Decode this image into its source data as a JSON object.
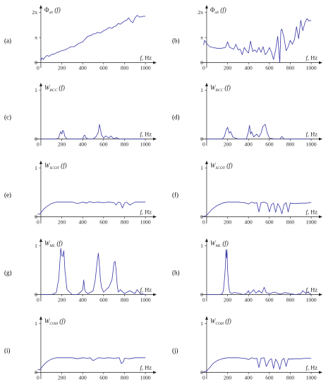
{
  "figure": {
    "x_axis_label": "f, Hz",
    "x_ticks": [
      0,
      200,
      400,
      600,
      800,
      1000
    ]
  },
  "chart_data": [
    {
      "panel": "(a)",
      "type": "line",
      "ylabel_symbol": "Φ",
      "ylabel_sub": "ab",
      "ylabel_arg": "(f)",
      "xlim": [
        -40,
        1040
      ],
      "ylim": [
        -0.3,
        6.6
      ],
      "yticks": [
        {
          "v": 0,
          "t": "0"
        },
        {
          "v": 3.1416,
          "t": "π"
        },
        {
          "v": 6.2832,
          "t": "2π"
        }
      ],
      "x": [
        0,
        10,
        25,
        40,
        60,
        80,
        100,
        130,
        160,
        200,
        230,
        260,
        290,
        320,
        350,
        380,
        400,
        420,
        450,
        480,
        500,
        520,
        540,
        560,
        580,
        600,
        620,
        650,
        680,
        700,
        720,
        740,
        760,
        780,
        800,
        820,
        840,
        860,
        880,
        900,
        920,
        950,
        980,
        1000
      ],
      "values": [
        0.2,
        0.6,
        0.4,
        0.7,
        0.9,
        0.8,
        1.0,
        1.1,
        1.3,
        1.5,
        1.6,
        1.8,
        2.0,
        2.0,
        2.3,
        2.5,
        2.6,
        2.9,
        3.3,
        3.4,
        3.6,
        3.6,
        3.8,
        3.7,
        3.8,
        4.0,
        4.1,
        4.4,
        4.3,
        4.5,
        4.6,
        4.9,
        4.8,
        5.0,
        5.2,
        5.3,
        5.6,
        5.2,
        5.0,
        5.6,
        5.9,
        5.7,
        5.8,
        5.8
      ]
    },
    {
      "panel": "(b)",
      "type": "line",
      "ylabel_symbol": "Φ",
      "ylabel_sub": "ab",
      "ylabel_arg": "(f)",
      "xlim": [
        -40,
        1040
      ],
      "ylim": [
        -0.3,
        6.6
      ],
      "yticks": [
        {
          "v": 0,
          "t": "0"
        },
        {
          "v": 3.1416,
          "t": "π"
        },
        {
          "v": 6.2832,
          "t": "2π"
        }
      ],
      "x": [
        -30,
        -20,
        0,
        30,
        60,
        100,
        140,
        180,
        200,
        220,
        260,
        280,
        300,
        320,
        340,
        360,
        380,
        400,
        420,
        440,
        460,
        480,
        500,
        520,
        540,
        560,
        580,
        600,
        620,
        640,
        660,
        680,
        700,
        710,
        720,
        740,
        760,
        780,
        800,
        820,
        840,
        860,
        880,
        900,
        920,
        940,
        960,
        980,
        1000
      ],
      "values": [
        2.2,
        2.8,
        2.4,
        2.0,
        1.9,
        1.8,
        1.8,
        1.9,
        2.6,
        1.9,
        1.7,
        2.3,
        1.6,
        1.7,
        1.0,
        1.9,
        1.5,
        1.2,
        2.7,
        1.4,
        1.6,
        1.3,
        1.9,
        1.3,
        2.0,
        1.0,
        1.3,
        1.9,
        1.3,
        0.4,
        1.6,
        3.3,
        0.0,
        4.0,
        4.2,
        3.1,
        1.5,
        2.0,
        2.8,
        2.3,
        2.9,
        4.5,
        3.0,
        5.3,
        4.0,
        5.0,
        5.5,
        5.2,
        5.3
      ]
    },
    {
      "panel": "(c)",
      "type": "line",
      "ylabel_symbol": "W",
      "ylabel_sub": "BCC",
      "ylabel_arg": "(f)",
      "xlim": [
        -40,
        1040
      ],
      "ylim": [
        -0.08,
        1.05
      ],
      "yticks": [
        {
          "v": 0,
          "t": "0"
        },
        {
          "v": 1,
          "t": "1"
        }
      ],
      "x": [
        0,
        100,
        150,
        170,
        180,
        190,
        200,
        210,
        220,
        230,
        250,
        300,
        400,
        410,
        420,
        430,
        450,
        500,
        530,
        550,
        560,
        570,
        580,
        600,
        620,
        650,
        670,
        700,
        720,
        750,
        1000
      ],
      "values": [
        0,
        0,
        0,
        0.02,
        0.1,
        0.15,
        0.1,
        0.18,
        0.14,
        0.05,
        0,
        0,
        0,
        0.06,
        0.08,
        0.03,
        0,
        0,
        0.05,
        0.14,
        0.3,
        0.2,
        0.08,
        0.02,
        0.06,
        0.02,
        0.06,
        0,
        0.03,
        0,
        0
      ]
    },
    {
      "panel": "(d)",
      "type": "line",
      "ylabel_symbol": "W",
      "ylabel_sub": "BCC",
      "ylabel_arg": "(f)",
      "xlim": [
        -40,
        1040
      ],
      "ylim": [
        -0.08,
        1.05
      ],
      "yticks": [
        {
          "v": 0,
          "t": "0"
        },
        {
          "v": 1,
          "t": "1"
        }
      ],
      "x": [
        0,
        100,
        150,
        170,
        185,
        200,
        215,
        230,
        250,
        300,
        350,
        380,
        400,
        410,
        420,
        430,
        450,
        480,
        500,
        520,
        540,
        560,
        580,
        600,
        650,
        700,
        720,
        740,
        760,
        800,
        1000
      ],
      "values": [
        0,
        0,
        0,
        0.05,
        0.17,
        0.24,
        0.12,
        0.15,
        0.04,
        0,
        0,
        0,
        0.15,
        0.28,
        0.1,
        0.15,
        0.04,
        0.1,
        0.04,
        0.12,
        0.26,
        0.3,
        0.12,
        0.02,
        0,
        0,
        0.05,
        0,
        0,
        0,
        0
      ]
    },
    {
      "panel": "(e)",
      "type": "line",
      "ylabel_symbol": "W",
      "ylabel_sub": "SCOT",
      "ylabel_arg": "(f)",
      "xlim": [
        -40,
        1040
      ],
      "ylim": [
        -0.08,
        1.05
      ],
      "yticks": [
        {
          "v": 0,
          "t": "0"
        },
        {
          "v": 1,
          "t": "1"
        }
      ],
      "x": [
        -30,
        -10,
        0,
        20,
        50,
        100,
        150,
        200,
        300,
        350,
        400,
        440,
        460,
        500,
        550,
        600,
        650,
        700,
        720,
        740,
        760,
        780,
        800,
        820,
        850,
        900,
        950,
        1000
      ],
      "values": [
        0.06,
        0.05,
        0.08,
        0.14,
        0.2,
        0.27,
        0.3,
        0.3,
        0.3,
        0.27,
        0.3,
        0.28,
        0.31,
        0.29,
        0.3,
        0.29,
        0.3,
        0.29,
        0.24,
        0.3,
        0.29,
        0.18,
        0.28,
        0.3,
        0.24,
        0.3,
        0.3,
        0.3
      ]
    },
    {
      "panel": "(f)",
      "type": "line",
      "ylabel_symbol": "W",
      "ylabel_sub": "SCOT",
      "ylabel_arg": "(f)",
      "xlim": [
        -40,
        1040
      ],
      "ylim": [
        -0.08,
        1.05
      ],
      "yticks": [
        {
          "v": 0,
          "t": "0"
        },
        {
          "v": 1,
          "t": "1"
        }
      ],
      "x": [
        -30,
        -10,
        0,
        20,
        50,
        100,
        150,
        200,
        300,
        350,
        380,
        400,
        430,
        460,
        480,
        500,
        520,
        550,
        580,
        600,
        620,
        640,
        660,
        680,
        700,
        720,
        740,
        760,
        780,
        800,
        850,
        900,
        950,
        1000
      ],
      "values": [
        0.01,
        0.02,
        0.03,
        0.08,
        0.15,
        0.23,
        0.28,
        0.3,
        0.3,
        0.29,
        0.28,
        0.26,
        0.3,
        0.28,
        0.29,
        0.1,
        0.29,
        0.3,
        0.27,
        0.1,
        0.25,
        0.28,
        0.09,
        0.27,
        0.2,
        0.06,
        0.25,
        0.29,
        0.1,
        0.28,
        0.27,
        0.28,
        0.28,
        0.29
      ]
    },
    {
      "panel": "(g)",
      "type": "line",
      "ylabel_symbol": "W",
      "ylabel_sub": "ML",
      "ylabel_arg": "(f)",
      "xlim": [
        -40,
        1040
      ],
      "ylim": [
        -0.08,
        1.05
      ],
      "yticks": [
        {
          "v": 0,
          "t": "0"
        },
        {
          "v": 1,
          "t": "1"
        }
      ],
      "x": [
        0,
        80,
        100,
        130,
        150,
        160,
        170,
        180,
        190,
        200,
        210,
        220,
        230,
        250,
        280,
        300,
        350,
        380,
        400,
        410,
        420,
        430,
        450,
        480,
        500,
        520,
        540,
        550,
        560,
        570,
        580,
        600,
        650,
        680,
        700,
        710,
        720,
        730,
        740,
        760,
        800,
        850,
        900,
        920,
        950,
        1000
      ],
      "values": [
        0,
        0,
        0,
        0.02,
        0.05,
        0.2,
        0.3,
        0.6,
        0.95,
        0.8,
        0.78,
        0.9,
        0.5,
        0.1,
        0.04,
        0,
        0,
        0.05,
        0.1,
        0.3,
        0.1,
        0.05,
        0.02,
        0.05,
        0.08,
        0.3,
        0.7,
        0.85,
        0.6,
        0.3,
        0.15,
        0.05,
        0.15,
        0.3,
        0.65,
        0.68,
        0.5,
        0.2,
        0.05,
        0.1,
        0.02,
        0.08,
        0.02,
        0.1,
        0.02,
        0
      ]
    },
    {
      "panel": "(h)",
      "type": "line",
      "ylabel_symbol": "W",
      "ylabel_sub": "ML",
      "ylabel_arg": "(f)",
      "xlim": [
        -40,
        1040
      ],
      "ylim": [
        -0.08,
        1.05
      ],
      "yticks": [
        {
          "v": 0,
          "t": "0"
        },
        {
          "v": 1,
          "t": "1"
        }
      ],
      "x": [
        0,
        100,
        130,
        150,
        160,
        170,
        180,
        185,
        190,
        195,
        200,
        210,
        220,
        240,
        260,
        300,
        350,
        380,
        400,
        410,
        430,
        450,
        470,
        500,
        530,
        550,
        570,
        600,
        650,
        700,
        750,
        800,
        850,
        900,
        920,
        950,
        970,
        1000
      ],
      "values": [
        0,
        0,
        0,
        0.02,
        0.08,
        0.3,
        0.6,
        0.92,
        0.75,
        0.92,
        0.5,
        0.2,
        0.05,
        0.02,
        0.04,
        0.03,
        0,
        0.02,
        0.08,
        0.02,
        0.05,
        0.1,
        0.03,
        0.08,
        0.03,
        0.15,
        0.04,
        0.02,
        0.05,
        0.01,
        0.04,
        0.02,
        0,
        0.02,
        0.08,
        0.02,
        0.05,
        0
      ]
    },
    {
      "panel": "(i)",
      "type": "line",
      "ylabel_symbol": "W",
      "ylabel_sub": "COH",
      "ylabel_arg": "(f)",
      "xlim": [
        -40,
        1040
      ],
      "ylim": [
        -0.08,
        1.05
      ],
      "yticks": [
        {
          "v": 0,
          "t": "0"
        },
        {
          "v": 1,
          "t": "1"
        }
      ],
      "x": [
        -30,
        -10,
        0,
        30,
        60,
        100,
        150,
        200,
        300,
        350,
        400,
        450,
        470,
        500,
        550,
        600,
        650,
        700,
        750,
        770,
        790,
        800,
        850,
        900,
        950,
        1000
      ],
      "values": [
        0.06,
        0.05,
        0.08,
        0.16,
        0.22,
        0.27,
        0.3,
        0.3,
        0.3,
        0.28,
        0.3,
        0.29,
        0.3,
        0.24,
        0.3,
        0.29,
        0.3,
        0.29,
        0.3,
        0.18,
        0.22,
        0.29,
        0.28,
        0.3,
        0.3,
        0.3
      ]
    },
    {
      "panel": "(j)",
      "type": "line",
      "ylabel_symbol": "W",
      "ylabel_sub": "COH",
      "ylabel_arg": "(f)",
      "xlim": [
        -40,
        1040
      ],
      "ylim": [
        -0.08,
        1.05
      ],
      "yticks": [
        {
          "v": 0,
          "t": "0"
        },
        {
          "v": 1,
          "t": "1"
        }
      ],
      "x": [
        -30,
        -10,
        0,
        30,
        60,
        100,
        150,
        200,
        300,
        350,
        380,
        400,
        430,
        460,
        480,
        500,
        520,
        550,
        570,
        600,
        620,
        640,
        660,
        680,
        700,
        720,
        740,
        760,
        780,
        800,
        850,
        900,
        950,
        1000
      ],
      "values": [
        0.01,
        0.02,
        0.03,
        0.1,
        0.18,
        0.24,
        0.28,
        0.3,
        0.3,
        0.29,
        0.28,
        0.26,
        0.3,
        0.28,
        0.29,
        0.1,
        0.29,
        0.3,
        0.12,
        0.25,
        0.28,
        0.08,
        0.27,
        0.2,
        0.06,
        0.25,
        0.29,
        0.12,
        0.28,
        0.27,
        0.28,
        0.28,
        0.29,
        0.29
      ]
    }
  ]
}
